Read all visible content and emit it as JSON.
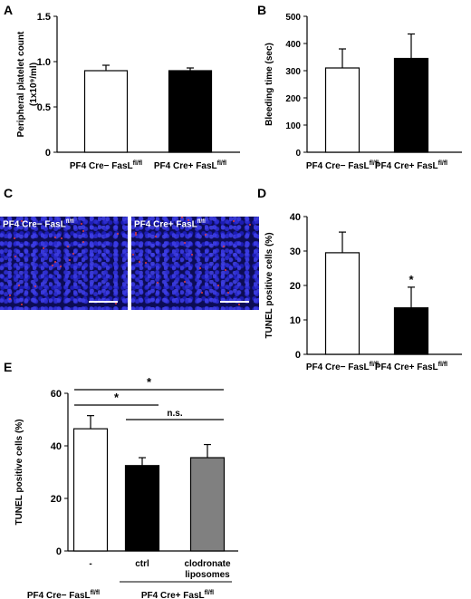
{
  "panels": {
    "a": "A",
    "b": "B",
    "c": "C",
    "d": "D",
    "e": "E"
  },
  "chart_data": [
    {
      "panel": "A",
      "type": "bar",
      "categories": [
        "PF4 Cre− FasL",
        "PF4 Cre+ FasL"
      ],
      "category_superscript": "fl/fl",
      "values": [
        0.9,
        0.9
      ],
      "errors": [
        0.06,
        0.03
      ],
      "bar_colors": [
        "#ffffff",
        "#000000"
      ],
      "ylabel": "Peripheral platelet count",
      "ylabel_unit": "(1x10⁹/ml)",
      "ylim": [
        0,
        1.5
      ],
      "yticks": [
        "0",
        "0.5",
        "1.0",
        "1.5"
      ]
    },
    {
      "panel": "B",
      "type": "bar",
      "categories": [
        "PF4 Cre− FasL",
        "PF4 Cre+ FasL"
      ],
      "category_superscript": "fl/fl",
      "values": [
        310,
        345
      ],
      "errors": [
        70,
        90
      ],
      "bar_colors": [
        "#ffffff",
        "#000000"
      ],
      "ylabel": "Bleeding time (sec)",
      "ylim": [
        0,
        500
      ],
      "yticks": [
        "0",
        "100",
        "200",
        "300",
        "400",
        "500"
      ]
    },
    {
      "panel": "D",
      "type": "bar",
      "categories": [
        "PF4 Cre− FasL",
        "PF4 Cre+ FasL"
      ],
      "category_superscript": "fl/fl",
      "values": [
        29.5,
        13.5
      ],
      "errors": [
        6,
        6
      ],
      "bar_colors": [
        "#ffffff",
        "#000000"
      ],
      "ylabel": "TUNEL positive cells (%)",
      "ylim": [
        0,
        40
      ],
      "yticks": [
        "0",
        "10",
        "20",
        "30",
        "40"
      ],
      "significance": [
        "",
        "*"
      ]
    },
    {
      "panel": "E",
      "type": "bar",
      "categories": [
        "-",
        "ctrl",
        "clodronate liposomes"
      ],
      "values": [
        46.5,
        32.5,
        35.5
      ],
      "errors": [
        5,
        3,
        5
      ],
      "bar_colors": [
        "#ffffff",
        "#000000",
        "#808080"
      ],
      "ylabel": "TUNEL positive cells (%)",
      "ylim": [
        0,
        60
      ],
      "yticks": [
        "0",
        "20",
        "40",
        "60"
      ],
      "comparisons": [
        {
          "from": 0,
          "to": 1,
          "label": "*"
        },
        {
          "from": 0,
          "to": 2,
          "label": "*"
        },
        {
          "from": 1,
          "to": 2,
          "label": "n.s."
        }
      ],
      "group_labels": [
        "PF4 Cre− FasL",
        "PF4 Cre+ FasL"
      ],
      "group_superscript": "fl/fl"
    }
  ],
  "panel_c": {
    "left_label": "PF4 Cre− FasL",
    "right_label": "PF4 Cre+ FasL",
    "superscript": "fl/fl"
  }
}
